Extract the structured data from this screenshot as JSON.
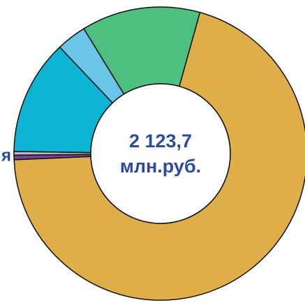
{
  "chart_data": {
    "type": "donut",
    "center_text": [
      "2 123,7",
      "млн.руб."
    ],
    "annotation": "я",
    "values": [
      70,
      0.5,
      0.4,
      12.7,
      3.3,
      13.1
    ],
    "colors": [
      "#dfae49",
      "#7b3f98",
      "#b7bcc2",
      "#0db4d4",
      "#6bc5e8",
      "#4dbf7f"
    ]
  }
}
